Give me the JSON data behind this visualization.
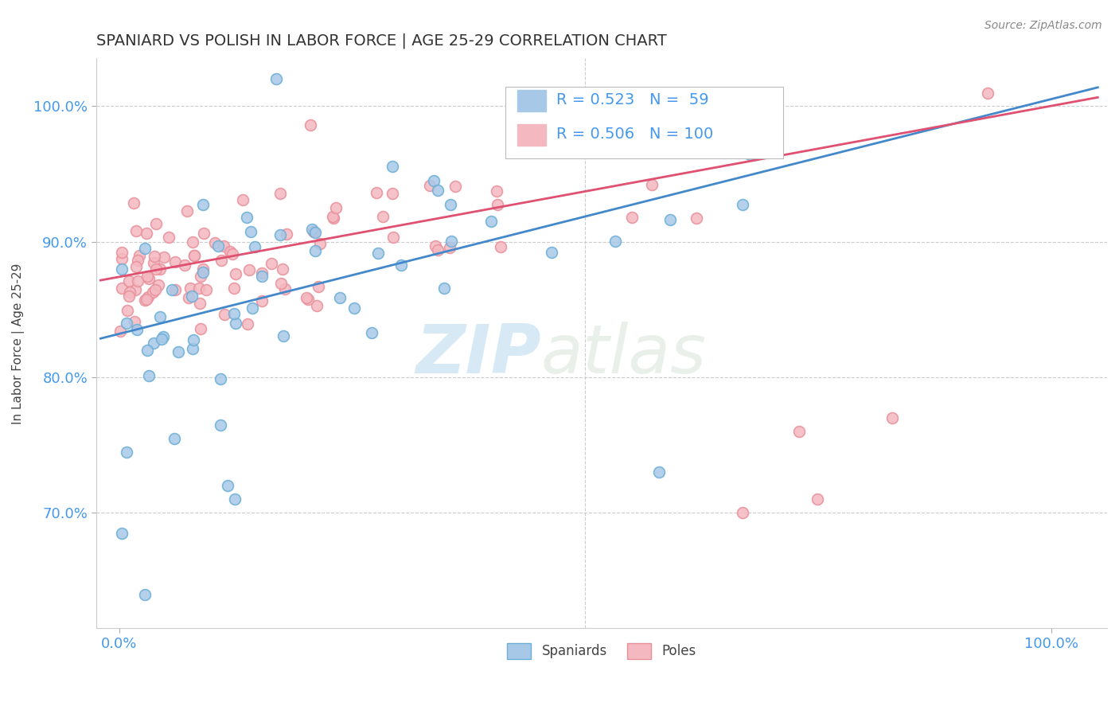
{
  "title": "SPANIARD VS POLISH IN LABOR FORCE | AGE 25-29 CORRELATION CHART",
  "source_text": "Source: ZipAtlas.com",
  "ylabel": "In Labor Force | Age 25-29",
  "spaniards_color": "#a8c8e8",
  "spaniards_edge_color": "#6baed6",
  "poles_color": "#f4b8c0",
  "poles_edge_color": "#e8909a",
  "spaniards_line_color": "#4488cc",
  "poles_line_color": "#e05070",
  "R_spaniards": 0.523,
  "N_spaniards": 59,
  "R_poles": 0.506,
  "N_poles": 100,
  "legend_label_spaniards": "Spaniards",
  "legend_label_poles": "Poles",
  "watermark_zip": "ZIP",
  "watermark_atlas": "atlas",
  "tick_color": "#4499ee",
  "grid_color": "#cccccc",
  "ytick_positions": [
    0.7,
    0.8,
    0.9,
    1.0
  ],
  "ytick_labels": [
    "70.0%",
    "80.0%",
    "90.0%",
    "100.0%"
  ],
  "xtick_positions": [
    0.0,
    1.0
  ],
  "xtick_labels": [
    "0.0%",
    "100.0%"
  ]
}
